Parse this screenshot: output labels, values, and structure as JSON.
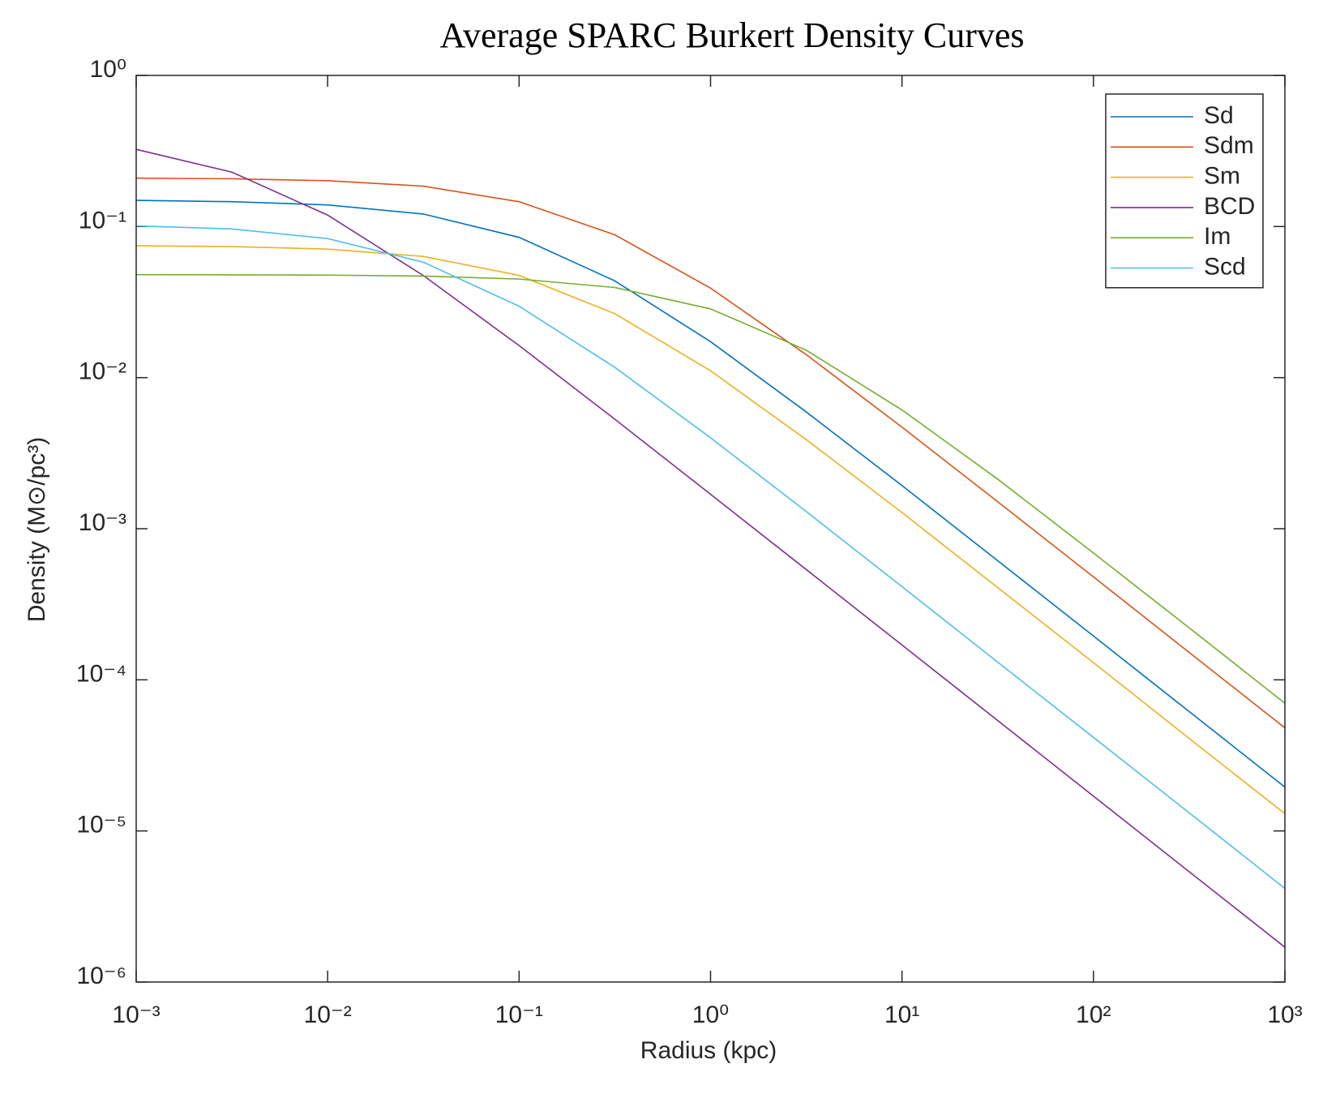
{
  "chart_data": {
    "type": "line",
    "title": "Average SPARC Burkert Density Curves",
    "xlabel": "Radius (kpc)",
    "ylabel": "Density (M⊙/pc³)",
    "log_x": true,
    "log_y": true,
    "legend": "upper right",
    "x": [
      0.001,
      0.00316,
      0.01,
      0.0316,
      0.1,
      0.316,
      1,
      3.16,
      10,
      31.6,
      100,
      316,
      1000
    ],
    "series": [
      {
        "name": "Sd",
        "color": "#0072BD",
        "values": [
          0.149,
          0.146,
          0.139,
          0.121,
          0.0848,
          0.0437,
          0.0173,
          0.00593,
          0.00193,
          0.000615,
          0.000195,
          6.17e-05,
          1.95e-05
        ]
      },
      {
        "name": "Sdm",
        "color": "#D95319",
        "values": [
          0.209,
          0.207,
          0.201,
          0.185,
          0.146,
          0.0882,
          0.0391,
          0.0142,
          0.0047,
          0.00151,
          0.00048,
          0.000152,
          4.81e-05
        ]
      },
      {
        "name": "Sm",
        "color": "#EDB120",
        "values": [
          0.0746,
          0.0737,
          0.0709,
          0.0634,
          0.0475,
          0.0265,
          0.0111,
          0.00389,
          0.00128,
          0.000408,
          0.00013,
          4.1e-05,
          1.3e-05
        ]
      },
      {
        "name": "BCD",
        "color": "#7E2F8E",
        "values": [
          0.324,
          0.229,
          0.119,
          0.0474,
          0.0163,
          0.00531,
          0.00169,
          0.000537,
          0.00017,
          5.38e-05,
          1.7e-05,
          5.38e-06,
          1.7e-06
        ]
      },
      {
        "name": "Im",
        "color": "#77AC30",
        "values": [
          0.048,
          0.0479,
          0.0477,
          0.047,
          0.0449,
          0.0395,
          0.0285,
          0.0152,
          0.00611,
          0.00213,
          0.000691,
          0.000221,
          7e-05
        ]
      },
      {
        "name": "Scd",
        "color": "#4DBEEE",
        "values": [
          0.101,
          0.0964,
          0.0832,
          0.0581,
          0.0297,
          0.0117,
          0.004,
          0.0013,
          0.000414,
          0.000131,
          4.16e-05,
          1.32e-05,
          4.16e-06
        ]
      }
    ],
    "xlim": [
      0.001,
      1000
    ],
    "ylim": [
      1e-06,
      1
    ],
    "xticks": [
      {
        "value": 0.001,
        "label": "10⁻³"
      },
      {
        "value": 0.01,
        "label": "10⁻²"
      },
      {
        "value": 0.1,
        "label": "10⁻¹"
      },
      {
        "value": 1,
        "label": "10⁰"
      },
      {
        "value": 10,
        "label": "10¹"
      },
      {
        "value": 100,
        "label": "10²"
      },
      {
        "value": 1000,
        "label": "10³"
      }
    ],
    "yticks": [
      {
        "value": 1e-06,
        "label": "10⁻⁶"
      },
      {
        "value": 1e-05,
        "label": "10⁻⁵"
      },
      {
        "value": 0.0001,
        "label": "10⁻⁴"
      },
      {
        "value": 0.001,
        "label": "10⁻³"
      },
      {
        "value": 0.01,
        "label": "10⁻²"
      },
      {
        "value": 0.1,
        "label": "10⁻¹"
      },
      {
        "value": 1,
        "label": "10⁰"
      }
    ]
  }
}
